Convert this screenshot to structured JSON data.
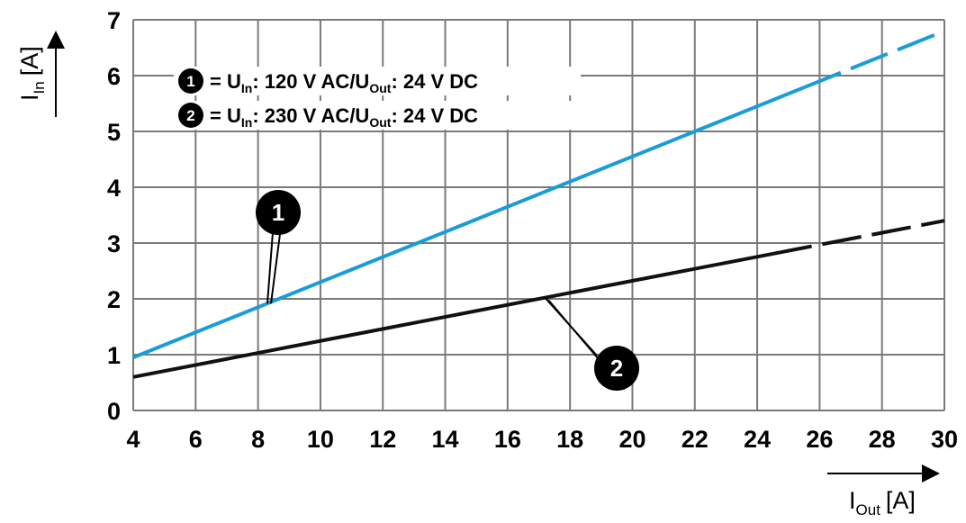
{
  "chart_data": {
    "type": "line",
    "x": [
      4,
      30
    ],
    "xlim": [
      4,
      30
    ],
    "ylim": [
      0,
      7
    ],
    "x_ticks": [
      4,
      6,
      8,
      10,
      12,
      14,
      16,
      18,
      20,
      22,
      24,
      26,
      28,
      30
    ],
    "y_ticks": [
      0,
      1,
      2,
      3,
      4,
      5,
      6,
      7
    ],
    "xlabel": {
      "main": "I",
      "sub": "Out",
      "unit": "[A]"
    },
    "ylabel": {
      "main": "I",
      "sub": "In",
      "unit": "[A]"
    },
    "grid": true,
    "series": [
      {
        "name": "1",
        "color": "#1a9cd8",
        "points": [
          [
            4,
            0.95
          ],
          [
            30,
            6.8
          ]
        ],
        "solid_until_x": 25.5,
        "legend": {
          "marker": "1",
          "prefix": "= U",
          "sub1": "In",
          "mid": ": 120 V AC/U",
          "sub2": "Out",
          "suffix": ": 24 V DC"
        }
      },
      {
        "name": "2",
        "color": "#111111",
        "points": [
          [
            4,
            0.6
          ],
          [
            30,
            3.4
          ]
        ],
        "solid_until_x": 24.5,
        "legend": {
          "marker": "2",
          "prefix": "= U",
          "sub1": "In",
          "mid": ": 230 V AC/U",
          "sub2": "Out",
          "suffix": ": 24 V DC"
        }
      }
    ],
    "legend_position": "top-left",
    "annotations": [
      {
        "label": "1",
        "series": 0,
        "x": 8.3
      },
      {
        "label": "2",
        "series": 1,
        "x": 17.2
      }
    ]
  }
}
